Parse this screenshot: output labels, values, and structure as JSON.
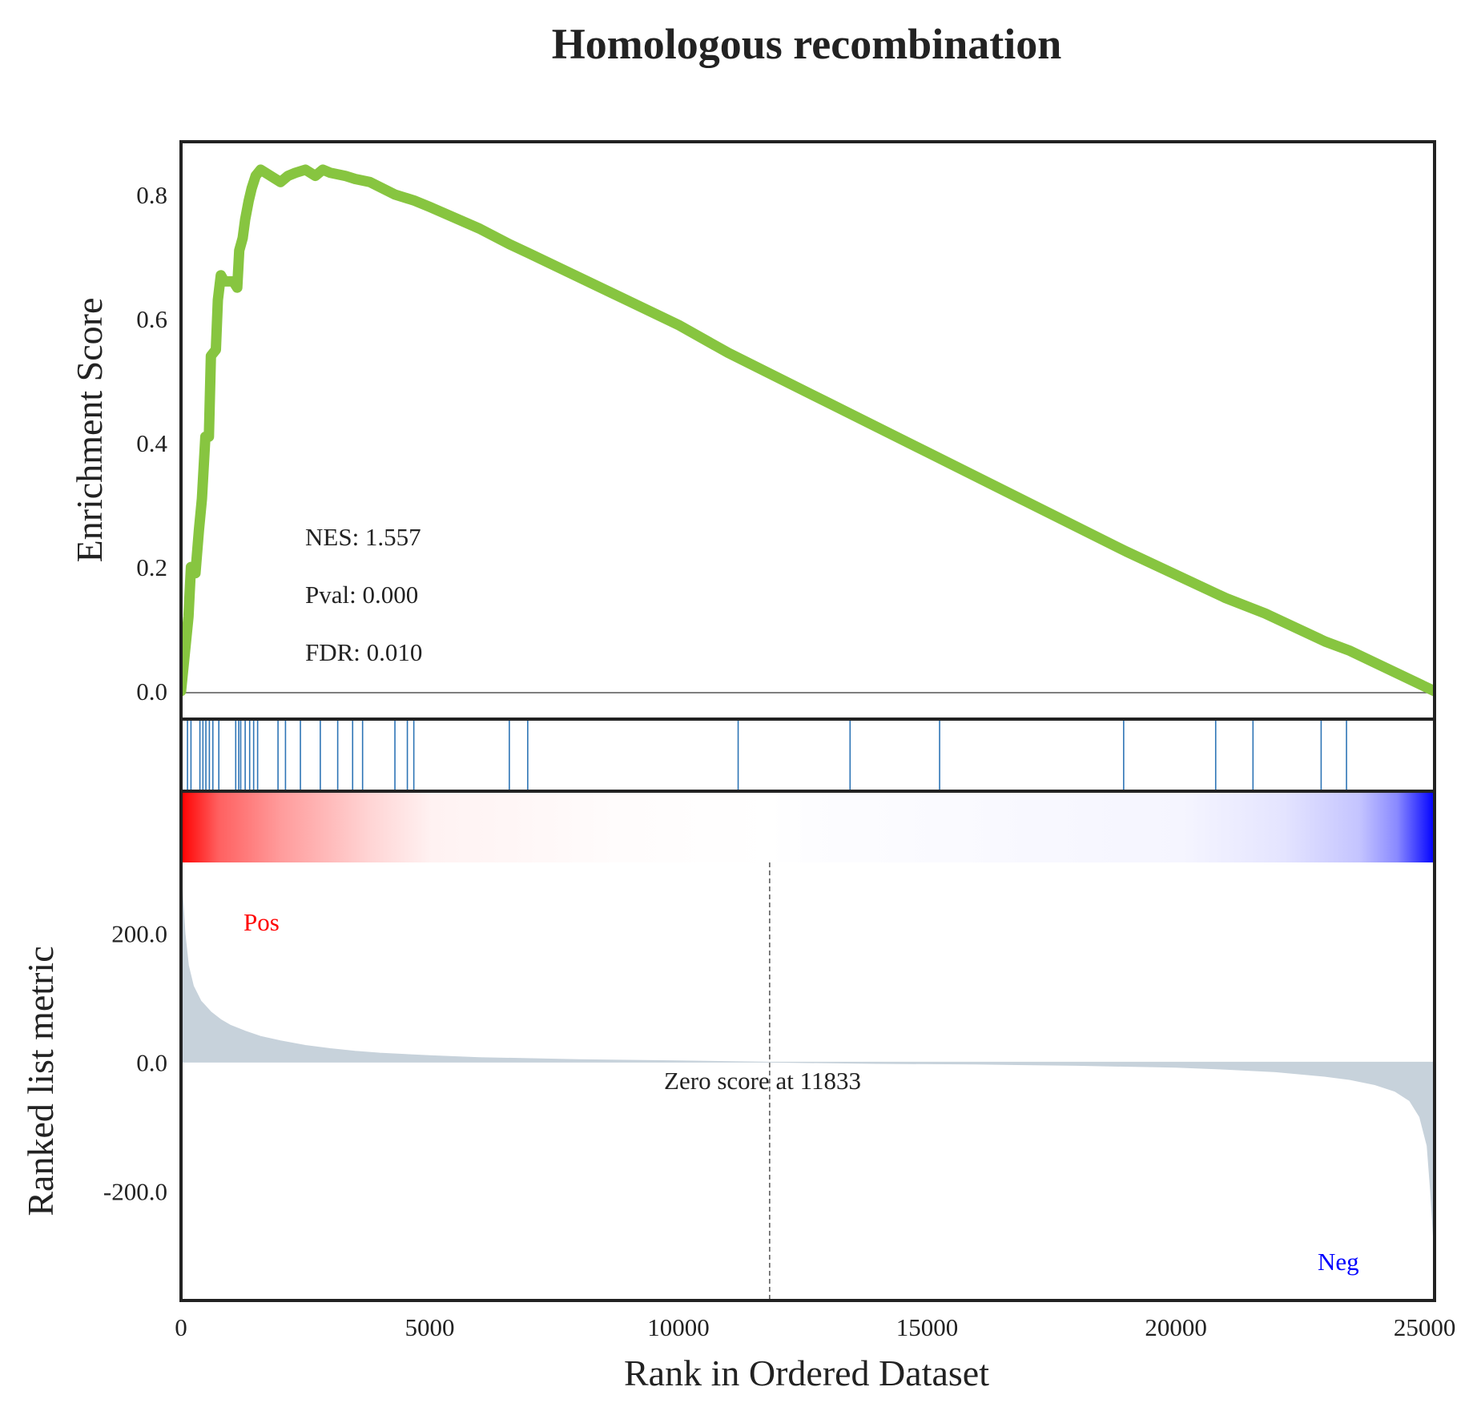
{
  "chart_data": {
    "type": "line",
    "title": "Homologous recombination",
    "xlabel": "Rank in Ordered Dataset",
    "xlim": [
      0,
      25200
    ],
    "x_ticks": [
      0,
      5000,
      10000,
      15000,
      20000,
      25000
    ],
    "es_panel": {
      "ylabel": "Enrichment Score",
      "ylim": [
        -0.045,
        0.885
      ],
      "y_ticks": [
        "0.0",
        "0.2",
        "0.4",
        "0.6",
        "0.8"
      ],
      "y_tick_values": [
        0.0,
        0.2,
        0.4,
        0.6,
        0.8
      ],
      "line_color": "#87c540",
      "baseline": 0.0,
      "points": [
        [
          0,
          0.0
        ],
        [
          150,
          0.12
        ],
        [
          200,
          0.2
        ],
        [
          290,
          0.19
        ],
        [
          360,
          0.26
        ],
        [
          420,
          0.31
        ],
        [
          490,
          0.41
        ],
        [
          560,
          0.41
        ],
        [
          600,
          0.54
        ],
        [
          700,
          0.55
        ],
        [
          740,
          0.63
        ],
        [
          800,
          0.67
        ],
        [
          870,
          0.66
        ],
        [
          1050,
          0.66
        ],
        [
          1130,
          0.65
        ],
        [
          1170,
          0.71
        ],
        [
          1240,
          0.73
        ],
        [
          1290,
          0.76
        ],
        [
          1360,
          0.79
        ],
        [
          1420,
          0.81
        ],
        [
          1500,
          0.83
        ],
        [
          1600,
          0.84
        ],
        [
          1800,
          0.83
        ],
        [
          2000,
          0.82
        ],
        [
          2150,
          0.83
        ],
        [
          2300,
          0.835
        ],
        [
          2500,
          0.84
        ],
        [
          2700,
          0.83
        ],
        [
          2850,
          0.84
        ],
        [
          3000,
          0.835
        ],
        [
          3300,
          0.83
        ],
        [
          3500,
          0.825
        ],
        [
          3800,
          0.82
        ],
        [
          4300,
          0.8
        ],
        [
          4700,
          0.79
        ],
        [
          5000,
          0.78
        ],
        [
          6000,
          0.745
        ],
        [
          6600,
          0.72
        ],
        [
          7000,
          0.705
        ],
        [
          10000,
          0.59
        ],
        [
          11000,
          0.545
        ],
        [
          13000,
          0.465
        ],
        [
          15000,
          0.385
        ],
        [
          17000,
          0.305
        ],
        [
          19000,
          0.225
        ],
        [
          21000,
          0.15
        ],
        [
          21800,
          0.125
        ],
        [
          23000,
          0.08
        ],
        [
          23500,
          0.065
        ],
        [
          25200,
          0.0
        ]
      ],
      "annotations": [
        "NES: 1.557",
        "Pval: 0.000",
        "FDR: 0.010"
      ]
    },
    "hits": [
      130,
      200,
      380,
      440,
      500,
      570,
      640,
      760,
      1100,
      1160,
      1200,
      1290,
      1380,
      1460,
      1540,
      1950,
      2100,
      2400,
      2800,
      3150,
      3450,
      3650,
      4300,
      4550,
      4680,
      6600,
      6970,
      11200,
      13450,
      15250,
      18950,
      20800,
      21550,
      22920,
      23430
    ],
    "hit_color": "#2e75b6",
    "ranked_panel": {
      "ylabel": "Ranked list metric",
      "ylim": [
        -370,
        310
      ],
      "y_ticks": [
        "200.0",
        "0.0",
        "-200.0"
      ],
      "y_tick_values": [
        200,
        0,
        -200
      ],
      "fill_color": "#c7d2db",
      "zero_cross": 11833,
      "zero_label": "Zero score at 11833",
      "pos_label": "Pos",
      "neg_label": "Neg",
      "pos_color": "#ff0000",
      "neg_color": "#0000ff",
      "curve": [
        [
          0,
          310
        ],
        [
          30,
          260
        ],
        [
          80,
          200
        ],
        [
          150,
          150
        ],
        [
          250,
          118
        ],
        [
          400,
          95
        ],
        [
          600,
          78
        ],
        [
          800,
          66
        ],
        [
          1000,
          57
        ],
        [
          1300,
          48
        ],
        [
          1600,
          40
        ],
        [
          2000,
          33
        ],
        [
          2500,
          26
        ],
        [
          3000,
          21
        ],
        [
          3500,
          17
        ],
        [
          4000,
          14
        ],
        [
          5000,
          10
        ],
        [
          6000,
          7
        ],
        [
          8000,
          4
        ],
        [
          10000,
          2
        ],
        [
          11833,
          0
        ],
        [
          14000,
          -2
        ],
        [
          16000,
          -3
        ],
        [
          18000,
          -5
        ],
        [
          20000,
          -8
        ],
        [
          21000,
          -11
        ],
        [
          22000,
          -15
        ],
        [
          23000,
          -22
        ],
        [
          23500,
          -27
        ],
        [
          24000,
          -35
        ],
        [
          24400,
          -45
        ],
        [
          24700,
          -60
        ],
        [
          24900,
          -85
        ],
        [
          25050,
          -130
        ],
        [
          25120,
          -200
        ],
        [
          25200,
          -300
        ]
      ]
    }
  }
}
